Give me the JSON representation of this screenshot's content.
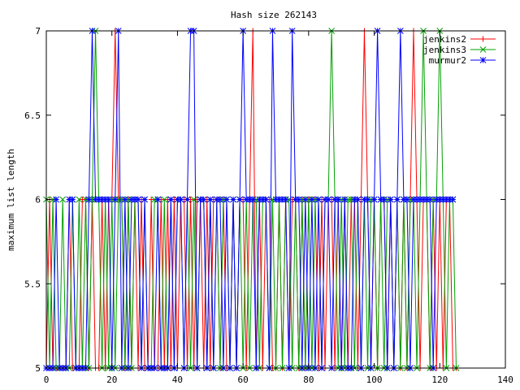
{
  "chart_data": {
    "type": "line",
    "title": "Hash size 262143",
    "xlabel": "",
    "ylabel": "maximum list length",
    "xlim": [
      0,
      140
    ],
    "ylim": [
      5,
      7
    ],
    "xticks": [
      0,
      20,
      40,
      60,
      80,
      100,
      120,
      140
    ],
    "yticks": [
      5,
      5.5,
      6,
      6.5,
      7
    ],
    "grid": false,
    "legend": "top-right",
    "series": [
      {
        "name": "jenkins2",
        "color": "#ff0000",
        "marker": "plus",
        "x": [
          0,
          1,
          2,
          3,
          4,
          5,
          6,
          7,
          8,
          9,
          10,
          11,
          12,
          13,
          14,
          15,
          16,
          17,
          18,
          19,
          20,
          21,
          22,
          23,
          24,
          25,
          26,
          27,
          28,
          29,
          30,
          31,
          32,
          33,
          34,
          35,
          36,
          37,
          38,
          39,
          40,
          41,
          42,
          43,
          44,
          45,
          46,
          47,
          48,
          49,
          50,
          51,
          52,
          53,
          54,
          55,
          56,
          57,
          58,
          59,
          60,
          61,
          62,
          63,
          64,
          65,
          66,
          67,
          68,
          69,
          70,
          71,
          72,
          73,
          74,
          75,
          76,
          77,
          78,
          79,
          80,
          81,
          82,
          83,
          84,
          85,
          86,
          87,
          88,
          89,
          90,
          91,
          92,
          93,
          94,
          95,
          96,
          97,
          98,
          99,
          100,
          101,
          102,
          103,
          104,
          105,
          106,
          107,
          108,
          109,
          110,
          111,
          112,
          113,
          114,
          115,
          116,
          117,
          118,
          119,
          120,
          121,
          122,
          123,
          124,
          125
        ],
        "y": [
          5,
          6,
          5,
          5,
          5,
          5,
          5,
          6,
          5,
          5,
          5,
          6,
          6,
          5,
          6,
          5,
          5,
          6,
          5,
          6,
          6,
          7,
          6,
          6,
          5,
          6,
          5,
          6,
          5,
          6,
          5,
          5,
          6,
          5,
          5,
          6,
          5,
          6,
          5,
          6,
          5,
          6,
          6,
          5,
          6,
          5,
          6,
          6,
          5,
          6,
          5,
          6,
          6,
          5,
          6,
          5,
          5,
          6,
          5,
          6,
          6,
          5,
          6,
          7,
          5,
          6,
          5,
          6,
          6,
          5,
          5,
          6,
          5,
          6,
          5,
          6,
          6,
          5,
          6,
          5,
          6,
          6,
          6,
          5,
          6,
          5,
          6,
          6,
          5,
          6,
          5,
          6,
          5,
          6,
          6,
          5,
          6,
          7,
          6,
          5,
          6,
          5,
          6,
          6,
          5,
          6,
          5,
          6,
          5,
          6,
          5,
          6,
          7,
          6,
          5,
          6,
          6,
          5,
          6,
          5,
          6,
          5,
          6,
          6,
          5,
          5
        ]
      },
      {
        "name": "jenkins3",
        "color": "#00a000",
        "marker": "cross",
        "x": [
          0,
          1,
          2,
          3,
          4,
          5,
          6,
          7,
          8,
          9,
          10,
          11,
          12,
          13,
          14,
          15,
          16,
          17,
          18,
          19,
          20,
          21,
          22,
          23,
          24,
          25,
          26,
          27,
          28,
          29,
          30,
          31,
          32,
          33,
          34,
          35,
          36,
          37,
          38,
          39,
          40,
          41,
          42,
          43,
          44,
          45,
          46,
          47,
          48,
          49,
          50,
          51,
          52,
          53,
          54,
          55,
          56,
          57,
          58,
          59,
          60,
          61,
          62,
          63,
          64,
          65,
          66,
          67,
          68,
          69,
          70,
          71,
          72,
          73,
          74,
          75,
          76,
          77,
          78,
          79,
          80,
          81,
          82,
          83,
          84,
          85,
          86,
          87,
          88,
          89,
          90,
          91,
          92,
          93,
          94,
          95,
          96,
          97,
          98,
          99,
          100,
          101,
          102,
          103,
          104,
          105,
          106,
          107,
          108,
          109,
          110,
          111,
          112,
          113,
          114,
          115,
          116,
          117,
          118,
          119,
          120,
          121,
          122,
          123,
          124,
          125
        ],
        "y": [
          6,
          5,
          6,
          5,
          5,
          6,
          5,
          5,
          6,
          5,
          6,
          5,
          6,
          5,
          6,
          7,
          6,
          5,
          6,
          5,
          6,
          5,
          6,
          6,
          5,
          6,
          5,
          6,
          6,
          5,
          6,
          5,
          5,
          6,
          6,
          5,
          6,
          5,
          6,
          5,
          6,
          6,
          5,
          6,
          5,
          6,
          5,
          6,
          6,
          5,
          6,
          5,
          6,
          5,
          6,
          6,
          5,
          6,
          5,
          6,
          5,
          6,
          5,
          6,
          6,
          5,
          6,
          6,
          5,
          6,
          5,
          6,
          5,
          6,
          6,
          5,
          6,
          5,
          6,
          5,
          6,
          5,
          6,
          6,
          5,
          6,
          6,
          7,
          6,
          5,
          6,
          5,
          6,
          6,
          5,
          6,
          5,
          6,
          5,
          6,
          6,
          5,
          6,
          5,
          6,
          6,
          5,
          6,
          5,
          6,
          5,
          6,
          6,
          5,
          6,
          7,
          6,
          5,
          6,
          6,
          7,
          6,
          5,
          6,
          6,
          5
        ]
      },
      {
        "name": "murmur2",
        "color": "#0000ff",
        "marker": "star",
        "x": [
          0,
          1,
          2,
          3,
          4,
          5,
          6,
          7,
          8,
          9,
          10,
          11,
          12,
          13,
          14,
          15,
          16,
          17,
          18,
          19,
          20,
          21,
          22,
          23,
          24,
          25,
          26,
          27,
          28,
          29,
          30,
          31,
          32,
          33,
          34,
          35,
          36,
          37,
          38,
          39,
          40,
          41,
          42,
          43,
          44,
          45,
          46,
          47,
          48,
          49,
          50,
          51,
          52,
          53,
          54,
          55,
          56,
          57,
          58,
          59,
          60,
          61,
          62,
          63,
          64,
          65,
          66,
          67,
          68,
          69,
          70,
          71,
          72,
          73,
          74,
          75,
          76,
          77,
          78,
          79,
          80,
          81,
          82,
          83,
          84,
          85,
          86,
          87,
          88,
          89,
          90,
          91,
          92,
          93,
          94,
          95,
          96,
          97,
          98,
          99,
          100,
          101,
          102,
          103,
          104,
          105,
          106,
          107,
          108,
          109,
          110,
          111,
          112,
          113,
          114,
          115,
          116,
          117,
          118,
          119,
          120,
          121,
          122,
          123,
          124
        ],
        "y": [
          5,
          5,
          5,
          6,
          5,
          5,
          5,
          6,
          6,
          5,
          5,
          5,
          5,
          6,
          7,
          6,
          6,
          6,
          6,
          6,
          5,
          6,
          7,
          5,
          6,
          5,
          6,
          6,
          6,
          5,
          6,
          5,
          5,
          5,
          6,
          5,
          5,
          5,
          6,
          5,
          6,
          6,
          5,
          6,
          7,
          7,
          5,
          6,
          6,
          5,
          6,
          5,
          6,
          6,
          5,
          6,
          5,
          6,
          5,
          6,
          7,
          6,
          6,
          6,
          5,
          6,
          6,
          6,
          5,
          7,
          6,
          6,
          6,
          6,
          5,
          7,
          6,
          6,
          5,
          6,
          5,
          6,
          5,
          6,
          5,
          6,
          6,
          5,
          6,
          6,
          5,
          6,
          5,
          5,
          6,
          6,
          5,
          6,
          6,
          5,
          6,
          7,
          6,
          6,
          5,
          6,
          5,
          6,
          7,
          6,
          6,
          5,
          6,
          6,
          6,
          6,
          6,
          6,
          5,
          6,
          6,
          6,
          6,
          6,
          6
        ]
      }
    ]
  }
}
